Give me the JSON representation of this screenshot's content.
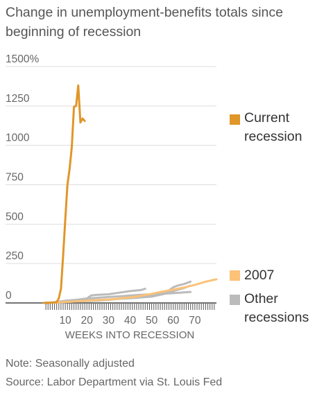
{
  "chart_data": {
    "type": "line",
    "title": "Change in unemployment-benefits totals since beginning of recession",
    "xlabel": "WEEKS INTO RECESSION",
    "ylabel": "",
    "xlim": [
      0,
      80
    ],
    "ylim": [
      0,
      1500
    ],
    "x_ticks": [
      "10",
      "20",
      "30",
      "40",
      "50",
      "60",
      "70"
    ],
    "x_tick_values": [
      10,
      20,
      30,
      40,
      50,
      60,
      70
    ],
    "y_ticks": [
      "0",
      "250",
      "500",
      "750",
      "1000",
      "1250",
      "1500%"
    ],
    "y_tick_values": [
      0,
      250,
      500,
      750,
      1000,
      1250,
      1500
    ],
    "grid": "horizontal",
    "legend_placement": "right",
    "series": [
      {
        "name": "Other recessions",
        "color": "#bbbbbb",
        "lines": [
          [
            [
              0,
              0
            ],
            [
              5,
              3
            ],
            [
              10,
              10
            ],
            [
              15,
              18
            ],
            [
              20,
              28
            ],
            [
              22,
              48
            ],
            [
              25,
              52
            ],
            [
              30,
              55
            ],
            [
              35,
              65
            ],
            [
              40,
              75
            ],
            [
              45,
              82
            ],
            [
              47,
              90
            ]
          ],
          [
            [
              0,
              0
            ],
            [
              5,
              5
            ],
            [
              10,
              14
            ],
            [
              15,
              20
            ],
            [
              20,
              28
            ],
            [
              25,
              33
            ],
            [
              30,
              38
            ],
            [
              35,
              42
            ],
            [
              40,
              47
            ],
            [
              45,
              52
            ],
            [
              50,
              55
            ],
            [
              55,
              58
            ],
            [
              60,
              62
            ],
            [
              65,
              67
            ],
            [
              68,
              70
            ]
          ],
          [
            [
              0,
              0
            ],
            [
              10,
              6
            ],
            [
              20,
              12
            ],
            [
              25,
              15
            ],
            [
              30,
              20
            ],
            [
              35,
              27
            ],
            [
              40,
              32
            ],
            [
              45,
              38
            ],
            [
              50,
              48
            ],
            [
              55,
              65
            ],
            [
              58,
              80
            ],
            [
              60,
              100
            ],
            [
              62,
              110
            ],
            [
              65,
              120
            ],
            [
              68,
              135
            ]
          ],
          [
            [
              0,
              0
            ],
            [
              10,
              8
            ],
            [
              20,
              15
            ],
            [
              30,
              22
            ],
            [
              40,
              30
            ],
            [
              50,
              40
            ],
            [
              55,
              55
            ],
            [
              60,
              75
            ],
            [
              65,
              95
            ],
            [
              68,
              110
            ]
          ]
        ]
      },
      {
        "name": "2007",
        "color": "#fbc278",
        "lines": [
          [
            [
              0,
              0
            ],
            [
              5,
              2
            ],
            [
              10,
              6
            ],
            [
              15,
              10
            ],
            [
              20,
              14
            ],
            [
              25,
              18
            ],
            [
              30,
              22
            ],
            [
              35,
              28
            ],
            [
              40,
              35
            ],
            [
              45,
              45
            ],
            [
              50,
              58
            ],
            [
              55,
              72
            ],
            [
              60,
              85
            ],
            [
              65,
              98
            ],
            [
              70,
              115
            ],
            [
              75,
              135
            ],
            [
              80,
              150
            ]
          ]
        ]
      },
      {
        "name": "Current recession",
        "color": "#e09628",
        "lines": [
          [
            [
              0,
              0
            ],
            [
              4,
              2
            ],
            [
              6,
              5
            ],
            [
              7,
              30
            ],
            [
              8,
              90
            ],
            [
              9,
              300
            ],
            [
              10,
              530
            ],
            [
              11,
              750
            ],
            [
              12,
              850
            ],
            [
              13,
              990
            ],
            [
              14,
              1245
            ],
            [
              15,
              1250
            ],
            [
              16,
              1380
            ],
            [
              17,
              1145
            ],
            [
              18,
              1170
            ],
            [
              19,
              1155
            ]
          ]
        ]
      }
    ]
  },
  "notes": {
    "note": "Note: Seasonally adjusted",
    "source": "Source: Labor Department via St. Louis Fed"
  }
}
